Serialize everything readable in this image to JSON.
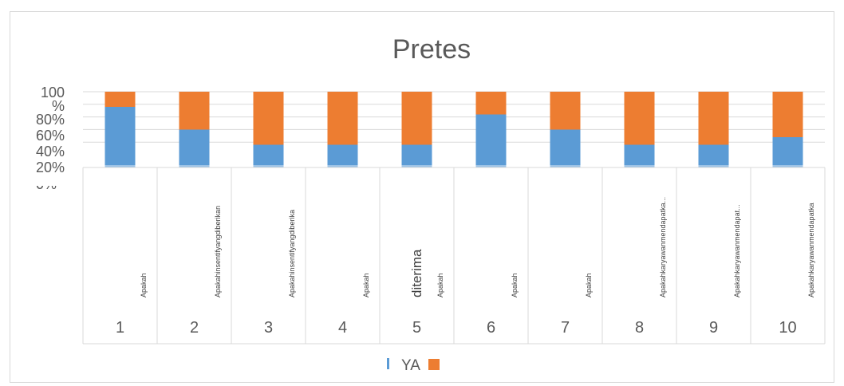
{
  "chart_data": {
    "type": "bar",
    "stacked": true,
    "title": "Pretes",
    "categories": [
      "1",
      "2",
      "3",
      "4",
      "5",
      "6",
      "7",
      "8",
      "9",
      "10"
    ],
    "category_texts": [
      "Apakah",
      "Apakahinsentifyangdiberikan",
      "Apakahinsentifyangdiberika",
      "Apakah",
      "Apakah",
      "Apakah",
      "Apakah",
      "Apakahkaryawanmendapatka...",
      "Apakahkaryawanmendapat...",
      "Apakahkaryawanmendapatka"
    ],
    "category_text_extra": "diterima",
    "yticks": [
      "100",
      "%",
      "80%",
      "60%",
      "40%",
      "20%"
    ],
    "ylim": [
      0,
      100
    ],
    "series": [
      {
        "name": "YA",
        "values": [
          80,
          50,
          30,
          30,
          30,
          70,
          50,
          30,
          30,
          40
        ],
        "color": "#5b9bd5"
      },
      {
        "name": "",
        "values": [
          20,
          50,
          70,
          70,
          70,
          30,
          50,
          70,
          70,
          60
        ],
        "color": "#ed7d31"
      }
    ],
    "legend": "bottom",
    "grid": true
  }
}
